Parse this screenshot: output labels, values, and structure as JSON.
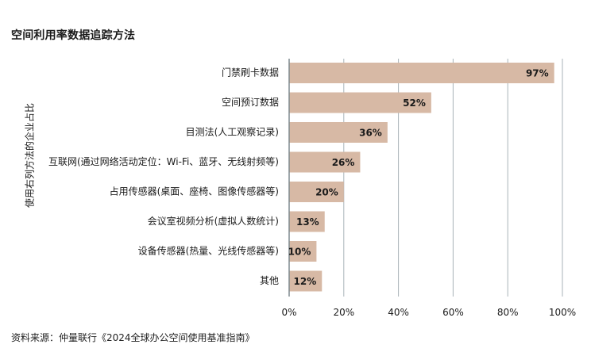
{
  "chart_data": {
    "type": "bar",
    "orientation": "horizontal",
    "title": "空间利用率数据追踪方法",
    "ylabel": "使用右列方法的企业占比",
    "xlabel": "",
    "categories": [
      "门禁刷卡数据",
      "空间预订数据",
      "目测法(人工观察记录)",
      "互联网(通过网络活动定位：Wi-Fi、蓝牙、无线射频等)",
      "占用传感器(桌面、座椅、图像传感器等)",
      "会议室视频分析(虚拟人数统计)",
      "设备传感器(热量、光线传感器等)",
      "其他"
    ],
    "values": [
      97,
      52,
      36,
      26,
      20,
      13,
      10,
      12
    ],
    "value_labels": [
      "97%",
      "52%",
      "36%",
      "26%",
      "20%",
      "13%",
      "10%",
      "12%"
    ],
    "xlim": [
      0,
      100
    ],
    "xticks": [
      0,
      20,
      40,
      60,
      80,
      100
    ],
    "xtick_labels": [
      "0%",
      "20%",
      "40%",
      "60%",
      "80%",
      "100%"
    ],
    "grid": true,
    "bar_color": "#d7b9a5",
    "grid_color": "#a9b3b8",
    "axis_color": "#7f8a8f"
  },
  "source": "资料来源：仲量联行《2024全球办公空间使用基准指南》"
}
